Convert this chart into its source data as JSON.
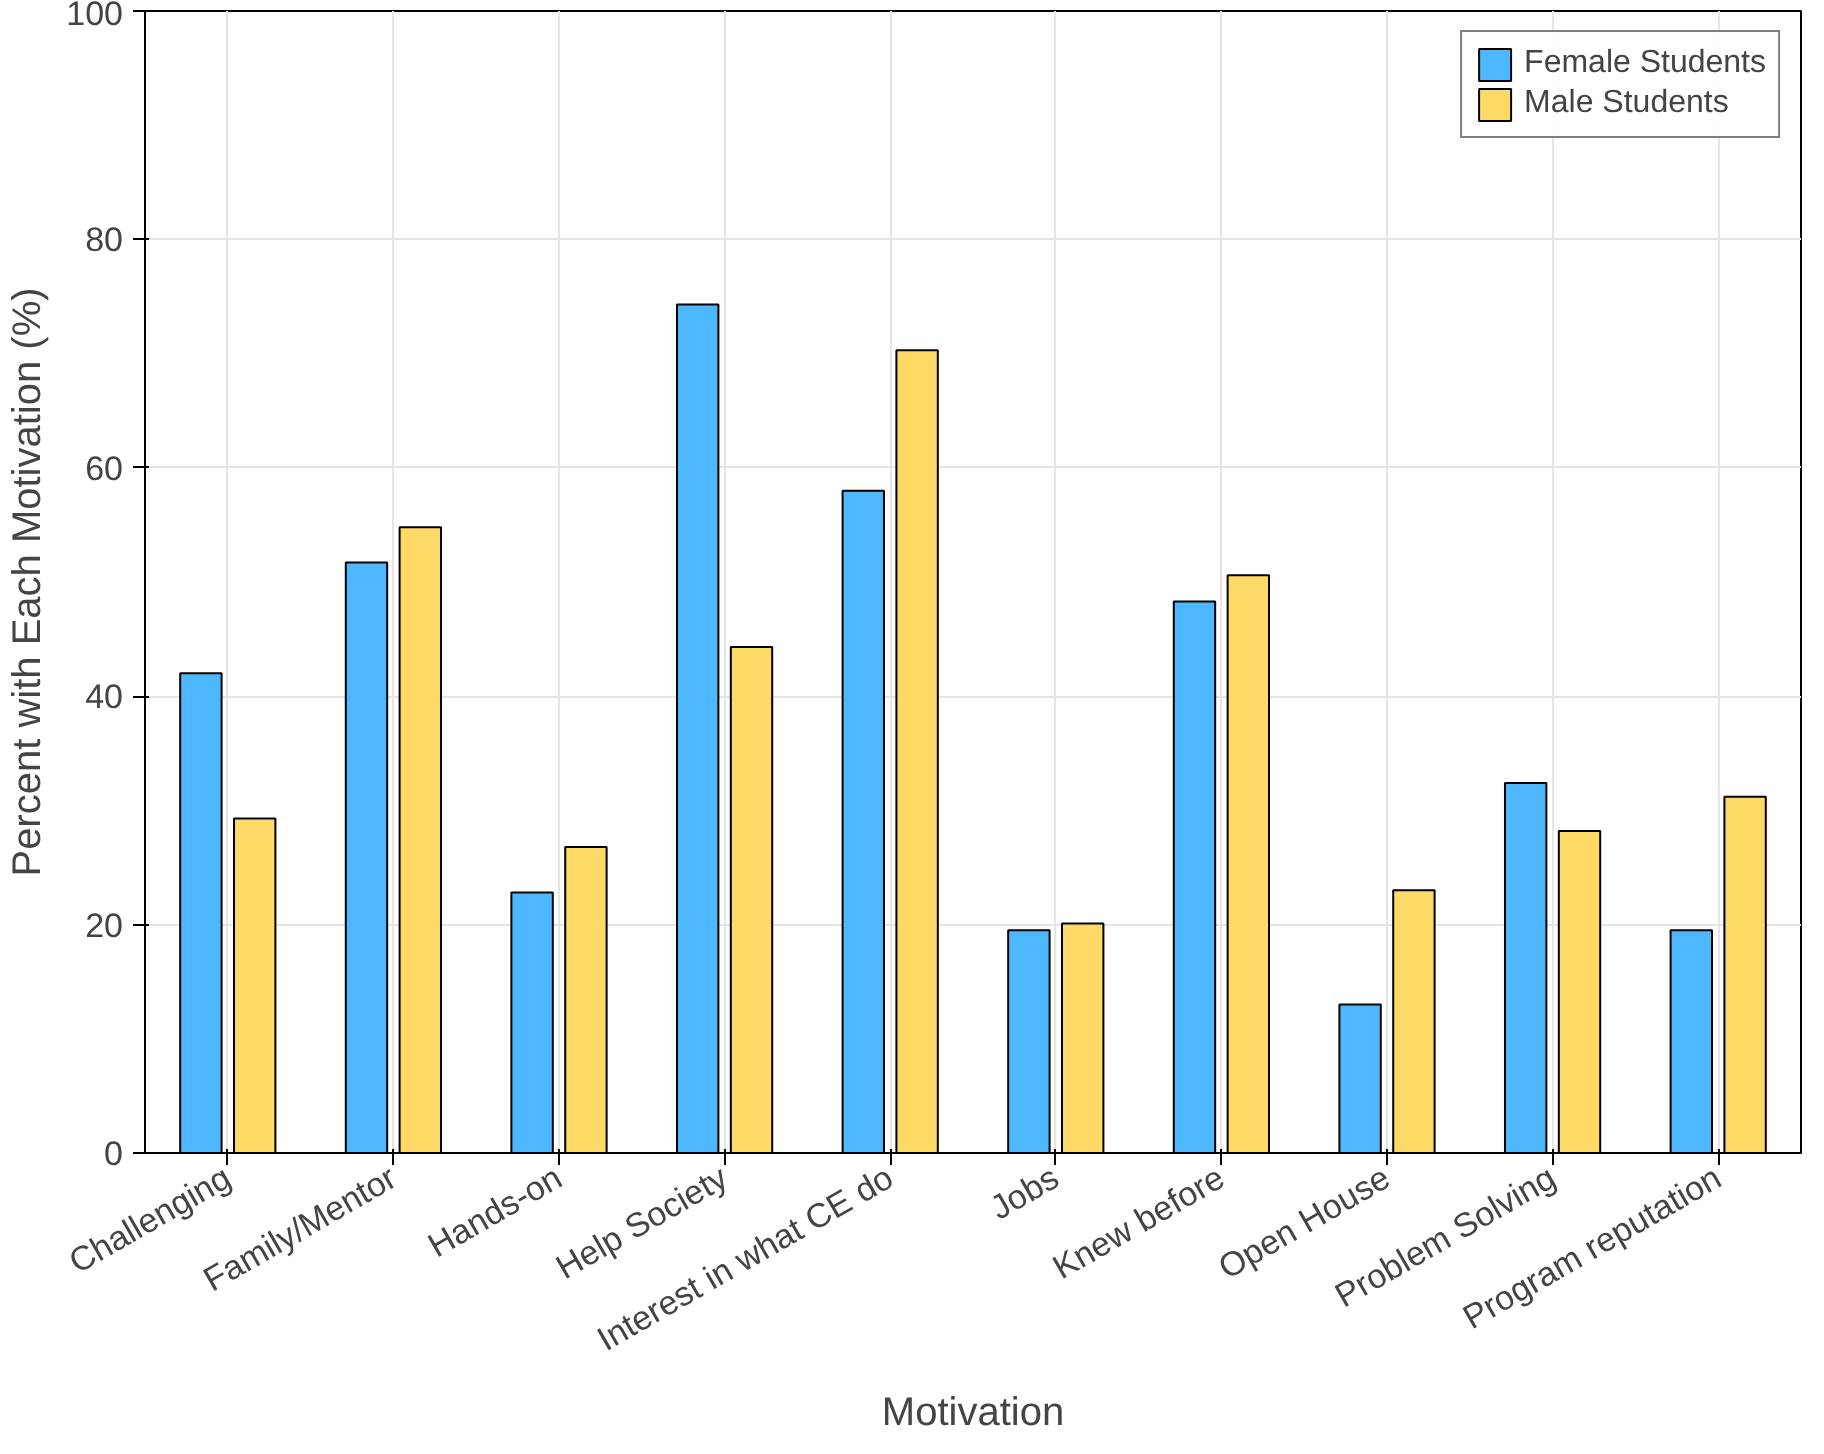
{
  "chart_data": {
    "type": "bar",
    "xlabel": "Motivation",
    "ylabel": "Percent with Each Motivation (%)",
    "categories": [
      "Challenging",
      "Family/Mentor",
      "Hands-on",
      "Help Society",
      "Interest in what CE do",
      "Jobs",
      "Knew before",
      "Open House",
      "Problem Solving",
      "Program reputation"
    ],
    "series": [
      {
        "name": "Female Students",
        "color": "#4db8ff",
        "values": [
          42,
          51.7,
          22.8,
          74.3,
          58,
          19.5,
          48.3,
          13,
          32.4,
          19.5
        ]
      },
      {
        "name": "Male Students",
        "color": "#ffd966",
        "values": [
          29.3,
          54.8,
          26.8,
          44.3,
          70.3,
          20.1,
          50.6,
          23,
          28.2,
          31.2
        ]
      }
    ],
    "ylim": [
      0,
      100
    ],
    "yticks": [
      0,
      20,
      40,
      60,
      80,
      100
    ],
    "grid": true,
    "legend": "top right"
  }
}
